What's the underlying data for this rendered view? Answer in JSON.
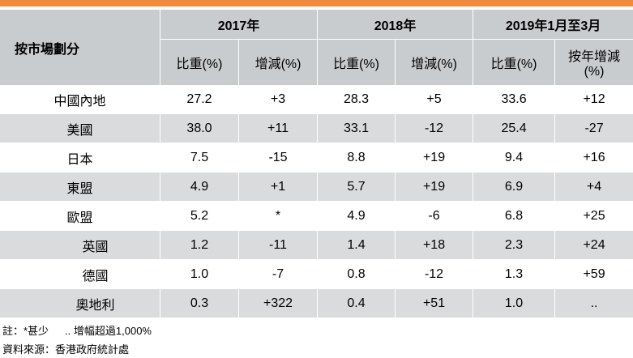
{
  "header": {
    "market_label": "按市場劃分",
    "years": [
      "2017年",
      "2018年",
      "2019年1月至3月"
    ],
    "sub": {
      "share": "比重(%)",
      "change": "增減(%)",
      "yoy_line1": "按年增減",
      "yoy_line2": "(%)"
    }
  },
  "rows": [
    {
      "label": "中國內地",
      "v": [
        "27.2",
        "+3",
        "28.3",
        "+5",
        "33.6",
        "+12"
      ]
    },
    {
      "label": "美國",
      "v": [
        "38.0",
        "+11",
        "33.1",
        "-12",
        "25.4",
        "-27"
      ]
    },
    {
      "label": "日本",
      "v": [
        "7.5",
        "-15",
        "8.8",
        "+19",
        "9.4",
        "+16"
      ]
    },
    {
      "label": "東盟",
      "v": [
        "4.9",
        "+1",
        "5.7",
        "+19",
        "6.9",
        "+4"
      ]
    },
    {
      "label": "歐盟",
      "v": [
        "5.2",
        "*",
        "4.9",
        "-6",
        "6.8",
        "+25"
      ]
    },
    {
      "label": "英國",
      "v": [
        "1.2",
        "-11",
        "1.4",
        "+18",
        "2.3",
        "+24"
      ]
    },
    {
      "label": "德國",
      "v": [
        "1.0",
        "-7",
        "0.8",
        "-12",
        "1.3",
        "+59"
      ]
    },
    {
      "label": "奧地利",
      "v": [
        "0.3",
        "+322",
        "0.4",
        "+51",
        "1.0",
        ".."
      ]
    }
  ],
  "notes": {
    "note_prefix": "註：*甚少",
    "note_suffix": ".. 增幅超過1,000%",
    "source": "資料來源：香港政府統計處"
  },
  "colors": {
    "accent_bar": "#f08a3c",
    "header_bg": "#c9ccce",
    "row_shade": "#d9dbdc"
  }
}
